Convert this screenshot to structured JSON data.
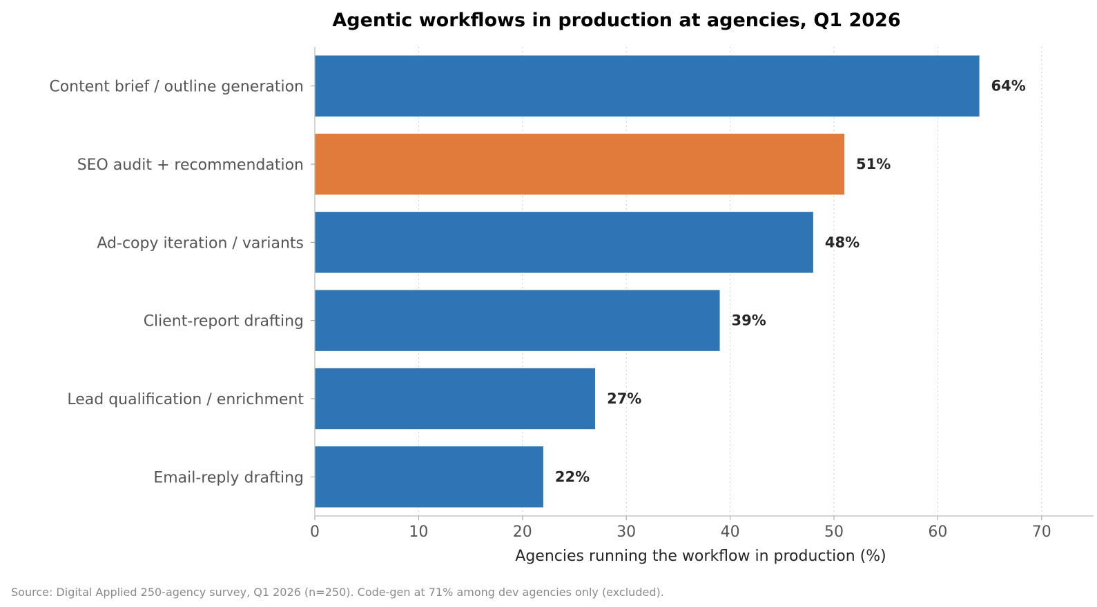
{
  "chart_data": {
    "type": "bar",
    "orientation": "horizontal",
    "title": "Agentic workflows in production at agencies, Q1 2026",
    "xlabel": "Agencies running the workflow in production (%)",
    "ylabel": "",
    "xlim": [
      0,
      75
    ],
    "xticks": [
      0,
      10,
      20,
      30,
      40,
      50,
      60,
      70
    ],
    "grid": "x-dotted",
    "categories": [
      "Content brief / outline generation",
      "SEO audit + recommendation",
      "Ad-copy iteration / variants",
      "Client-report drafting",
      "Lead qualification / enrichment",
      "Email-reply drafting"
    ],
    "values": [
      64,
      51,
      48,
      39,
      27,
      22
    ],
    "value_labels": [
      "64%",
      "51%",
      "48%",
      "39%",
      "27%",
      "22%"
    ],
    "colors": [
      "#2e75b6",
      "#e07b39",
      "#2e75b6",
      "#2e75b6",
      "#2e75b6",
      "#2e75b6"
    ],
    "source": "Source: Digital Applied 250-agency survey, Q1 2026 (n=250). Code-gen at 71% among dev agencies only (excluded)."
  }
}
